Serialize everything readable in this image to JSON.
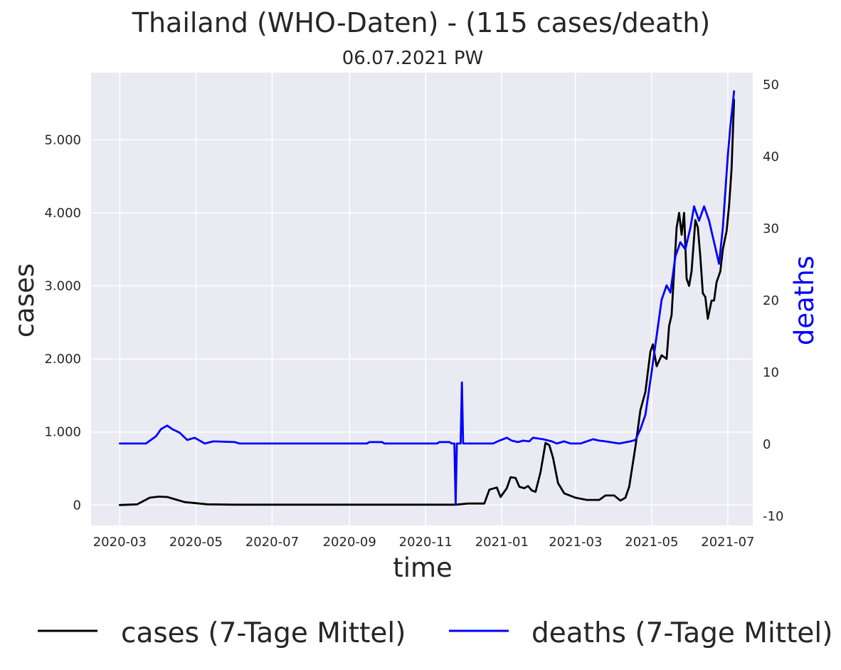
{
  "chart_data": {
    "type": "line",
    "title": "Thailand (WHO-Daten) - (115 cases/death)",
    "subtitle": "06.07.2021 PW",
    "xlabel": "time",
    "ylabel": "cases",
    "y2label": "deaths",
    "x_ticks": [
      "2020-03",
      "2020-05",
      "2020-07",
      "2020-09",
      "2020-11",
      "2021-01",
      "2021-03",
      "2021-05",
      "2021-07"
    ],
    "y_ticks": [
      "0",
      "1.000",
      "2.000",
      "3.000",
      "4.000",
      "5.000"
    ],
    "y_tick_values": [
      0,
      1000,
      2000,
      3000,
      4000,
      5000
    ],
    "y2_ticks": [
      "-10",
      "0",
      "10",
      "20",
      "30",
      "40",
      "50"
    ],
    "y2_tick_values": [
      -10,
      0,
      10,
      20,
      30,
      40,
      50
    ],
    "xlim": [
      "2020-02-07",
      "2021-07-21"
    ],
    "ylim": [
      -280,
      5920
    ],
    "y2lim": [
      -11.4,
      51.6
    ],
    "grid": true,
    "colors": {
      "background": "#eaeaf2",
      "grid": "#ffffff",
      "cases": "#000000",
      "deaths": "#0000ff",
      "y2label": "#0000ff"
    },
    "legend": {
      "placement": "bottom-center",
      "entries": [
        "cases (7-Tage Mittel)",
        "deaths (7-Tage Mittel)"
      ]
    },
    "series": [
      {
        "name": "cases (7-Tage Mittel)",
        "axis": "left",
        "points": [
          [
            "2020-03-01",
            0
          ],
          [
            "2020-03-15",
            10
          ],
          [
            "2020-03-25",
            100
          ],
          [
            "2020-04-01",
            115
          ],
          [
            "2020-04-08",
            110
          ],
          [
            "2020-04-15",
            75
          ],
          [
            "2020-04-22",
            40
          ],
          [
            "2020-05-01",
            25
          ],
          [
            "2020-05-10",
            10
          ],
          [
            "2020-06-01",
            5
          ],
          [
            "2020-11-25",
            5
          ],
          [
            "2020-12-05",
            20
          ],
          [
            "2020-12-18",
            20
          ],
          [
            "2020-12-22",
            210
          ],
          [
            "2020-12-28",
            240
          ],
          [
            "2020-12-31",
            110
          ],
          [
            "2021-01-05",
            230
          ],
          [
            "2021-01-08",
            380
          ],
          [
            "2021-01-12",
            370
          ],
          [
            "2021-01-15",
            250
          ],
          [
            "2021-01-19",
            230
          ],
          [
            "2021-01-22",
            260
          ],
          [
            "2021-01-25",
            200
          ],
          [
            "2021-01-28",
            180
          ],
          [
            "2021-02-01",
            450
          ],
          [
            "2021-02-05",
            850
          ],
          [
            "2021-02-08",
            820
          ],
          [
            "2021-02-11",
            650
          ],
          [
            "2021-02-15",
            300
          ],
          [
            "2021-02-20",
            160
          ],
          [
            "2021-03-01",
            100
          ],
          [
            "2021-03-10",
            70
          ],
          [
            "2021-03-20",
            70
          ],
          [
            "2021-03-25",
            130
          ],
          [
            "2021-04-01",
            130
          ],
          [
            "2021-04-06",
            60
          ],
          [
            "2021-04-10",
            100
          ],
          [
            "2021-04-13",
            250
          ],
          [
            "2021-04-18",
            800
          ],
          [
            "2021-04-22",
            1300
          ],
          [
            "2021-04-26",
            1550
          ],
          [
            "2021-04-30",
            2100
          ],
          [
            "2021-05-02",
            2200
          ],
          [
            "2021-05-05",
            1900
          ],
          [
            "2021-05-09",
            2050
          ],
          [
            "2021-05-13",
            2000
          ],
          [
            "2021-05-15",
            2450
          ],
          [
            "2021-05-17",
            2600
          ],
          [
            "2021-05-21",
            3800
          ],
          [
            "2021-05-23",
            4000
          ],
          [
            "2021-05-25",
            3700
          ],
          [
            "2021-05-27",
            4000
          ],
          [
            "2021-05-29",
            3100
          ],
          [
            "2021-05-31",
            3000
          ],
          [
            "2021-06-02",
            3200
          ],
          [
            "2021-06-05",
            3900
          ],
          [
            "2021-06-07",
            3800
          ],
          [
            "2021-06-09",
            3400
          ],
          [
            "2021-06-11",
            2900
          ],
          [
            "2021-06-13",
            2850
          ],
          [
            "2021-06-15",
            2550
          ],
          [
            "2021-06-18",
            2800
          ],
          [
            "2021-06-20",
            2800
          ],
          [
            "2021-06-22",
            3050
          ],
          [
            "2021-06-25",
            3200
          ],
          [
            "2021-06-27",
            3500
          ],
          [
            "2021-06-30",
            3750
          ],
          [
            "2021-07-02",
            4100
          ],
          [
            "2021-07-04",
            4600
          ],
          [
            "2021-07-06",
            5550
          ]
        ]
      },
      {
        "name": "deaths (7-Tage Mittel)",
        "axis": "right",
        "points": [
          [
            "2020-03-01",
            0
          ],
          [
            "2020-03-22",
            0
          ],
          [
            "2020-03-30",
            1
          ],
          [
            "2020-04-03",
            2
          ],
          [
            "2020-04-08",
            2.5
          ],
          [
            "2020-04-12",
            2
          ],
          [
            "2020-04-18",
            1.5
          ],
          [
            "2020-04-24",
            0.5
          ],
          [
            "2020-04-30",
            0.8
          ],
          [
            "2020-05-08",
            0
          ],
          [
            "2020-05-15",
            0.3
          ],
          [
            "2020-06-01",
            0.2
          ],
          [
            "2020-06-05",
            0
          ],
          [
            "2020-09-15",
            0
          ],
          [
            "2020-09-17",
            0.2
          ],
          [
            "2020-09-27",
            0.2
          ],
          [
            "2020-09-29",
            0
          ],
          [
            "2020-11-10",
            0
          ],
          [
            "2020-11-12",
            0.2
          ],
          [
            "2020-11-20",
            0.2
          ],
          [
            "2020-11-22",
            0
          ],
          [
            "2020-11-24",
            0
          ],
          [
            "2020-11-25",
            -8.5
          ],
          [
            "2020-11-26",
            0
          ],
          [
            "2020-11-29",
            0
          ],
          [
            "2020-11-30",
            8.5
          ],
          [
            "2020-12-01",
            0
          ],
          [
            "2020-12-25",
            0
          ],
          [
            "2020-12-30",
            0.4
          ],
          [
            "2021-01-05",
            0.8
          ],
          [
            "2021-01-09",
            0.4
          ],
          [
            "2021-01-14",
            0.2
          ],
          [
            "2021-01-18",
            0.4
          ],
          [
            "2021-01-23",
            0.3
          ],
          [
            "2021-01-26",
            0.8
          ],
          [
            "2021-02-03",
            0.6
          ],
          [
            "2021-02-10",
            0.3
          ],
          [
            "2021-02-14",
            0
          ],
          [
            "2021-02-20",
            0.3
          ],
          [
            "2021-02-25",
            0
          ],
          [
            "2021-03-05",
            0
          ],
          [
            "2021-03-15",
            0.6
          ],
          [
            "2021-03-20",
            0.4
          ],
          [
            "2021-03-25",
            0.3
          ],
          [
            "2021-04-05",
            0
          ],
          [
            "2021-04-14",
            0.3
          ],
          [
            "2021-04-18",
            0.5
          ],
          [
            "2021-04-22",
            2
          ],
          [
            "2021-04-26",
            4
          ],
          [
            "2021-05-01",
            10
          ],
          [
            "2021-05-05",
            15
          ],
          [
            "2021-05-09",
            20
          ],
          [
            "2021-05-13",
            22
          ],
          [
            "2021-05-16",
            21
          ],
          [
            "2021-05-20",
            26
          ],
          [
            "2021-05-24",
            28
          ],
          [
            "2021-05-28",
            27
          ],
          [
            "2021-06-01",
            30
          ],
          [
            "2021-06-04",
            33
          ],
          [
            "2021-06-08",
            31
          ],
          [
            "2021-06-12",
            33
          ],
          [
            "2021-06-16",
            31
          ],
          [
            "2021-06-20",
            28
          ],
          [
            "2021-06-24",
            25
          ],
          [
            "2021-06-27",
            30
          ],
          [
            "2021-07-01",
            40
          ],
          [
            "2021-07-03",
            44
          ],
          [
            "2021-07-06",
            49
          ]
        ]
      }
    ]
  }
}
